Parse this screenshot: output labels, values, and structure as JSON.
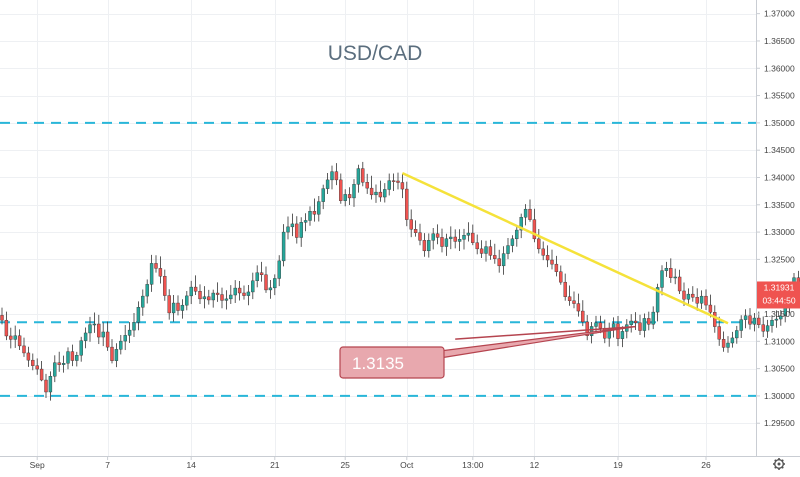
{
  "chart_data": {
    "type": "candlestick",
    "title": "USD/CAD",
    "colors": {
      "up": "#26a69a",
      "down": "#ef5350",
      "wick": "#333333",
      "grid": "#eef0f3",
      "level_line": "#29b6d9",
      "trendline": "#f5e23a",
      "annotation_fill": "#e8a8ae",
      "annotation_stroke": "#b5444f",
      "price_badge": "#ef5350",
      "axis_text": "#444444",
      "title_text": "#5b6e7e"
    },
    "y_axis": {
      "min": 1.289,
      "max": 1.3725,
      "ticks": [
        "1.37000",
        "1.36500",
        "1.36000",
        "1.35500",
        "1.35000",
        "1.34500",
        "1.34000",
        "1.33500",
        "1.33000",
        "1.32500",
        "1.31500",
        "1.31000",
        "1.30500",
        "1.30000",
        "1.29500"
      ]
    },
    "x_axis": {
      "labels": [
        {
          "label": "Sep",
          "index": 8
        },
        {
          "label": "7",
          "index": 24
        },
        {
          "label": "14",
          "index": 43
        },
        {
          "label": "21",
          "index": 62
        },
        {
          "label": "25",
          "index": 78
        },
        {
          "label": "Oct",
          "index": 92
        },
        {
          "label": "13:00",
          "index": 107
        },
        {
          "label": "12",
          "index": 121
        },
        {
          "label": "19",
          "index": 140
        },
        {
          "label": "26",
          "index": 160
        }
      ]
    },
    "price_badge": {
      "price": "1.31931",
      "countdown": "03:44:50",
      "value": 1.31931
    },
    "horizontal_levels": [
      1.35,
      1.3135,
      1.3
    ],
    "trendlines": [
      {
        "from": {
          "index": 91,
          "price": 1.3408
        },
        "to": {
          "index": 165,
          "price": 1.3133
        }
      },
      {
        "from": {
          "index": 103,
          "price": 1.3104
        },
        "to": {
          "index": 144,
          "price": 1.3127
        }
      }
    ],
    "annotation": {
      "label": "1.3135",
      "value": 1.3135
    },
    "candles": [
      [
        1.31476,
        1.31616,
        1.3131,
        1.31387
      ],
      [
        1.31387,
        1.31544,
        1.31022,
        1.31098
      ],
      [
        1.31098,
        1.31249,
        1.3087,
        1.31035
      ],
      [
        1.31035,
        1.31288,
        1.30879,
        1.31102
      ],
      [
        1.31102,
        1.31218,
        1.30842,
        1.30916
      ],
      [
        1.30916,
        1.31068,
        1.30714,
        1.30787
      ],
      [
        1.30787,
        1.30901,
        1.30533,
        1.30655
      ],
      [
        1.30655,
        1.30777,
        1.3047,
        1.30554
      ],
      [
        1.30554,
        1.30687,
        1.30387,
        1.30492
      ],
      [
        1.30492,
        1.3064,
        1.30268,
        1.30291
      ],
      [
        1.30291,
        1.30403,
        1.29963,
        1.30072
      ],
      [
        1.30072,
        1.30449,
        1.29913,
        1.3036
      ],
      [
        1.3036,
        1.30744,
        1.30253,
        1.30609
      ],
      [
        1.30609,
        1.30809,
        1.30442,
        1.30573
      ],
      [
        1.30573,
        1.30737,
        1.30426,
        1.30599
      ],
      [
        1.30599,
        1.30888,
        1.30489,
        1.30812
      ],
      [
        1.30812,
        1.3094,
        1.30546,
        1.30648
      ],
      [
        1.30648,
        1.30807,
        1.3054,
        1.30744
      ],
      [
        1.30744,
        1.31082,
        1.30627,
        1.31012
      ],
      [
        1.31012,
        1.31254,
        1.30874,
        1.31153
      ],
      [
        1.31153,
        1.31448,
        1.30991,
        1.31305
      ],
      [
        1.31305,
        1.31527,
        1.31155,
        1.31317
      ],
      [
        1.31317,
        1.31484,
        1.3095,
        1.31078
      ],
      [
        1.31078,
        1.31347,
        1.30913,
        1.31171
      ],
      [
        1.31171,
        1.31363,
        1.30825,
        1.30894
      ],
      [
        1.30894,
        1.31041,
        1.30596,
        1.30645
      ],
      [
        1.30645,
        1.30964,
        1.30527,
        1.30853
      ],
      [
        1.30853,
        1.31116,
        1.3076,
        1.31004
      ],
      [
        1.31004,
        1.31299,
        1.3084,
        1.31109
      ],
      [
        1.31109,
        1.31352,
        1.30969,
        1.31205
      ],
      [
        1.31205,
        1.31519,
        1.3108,
        1.31348
      ],
      [
        1.31348,
        1.31731,
        1.31202,
        1.31623
      ],
      [
        1.31623,
        1.31949,
        1.31467,
        1.31828
      ],
      [
        1.31828,
        1.32133,
        1.31693,
        1.32043
      ],
      [
        1.32043,
        1.32583,
        1.31906,
        1.32427
      ],
      [
        1.32427,
        1.32575,
        1.32257,
        1.32336
      ],
      [
        1.32336,
        1.32555,
        1.32059,
        1.32192
      ],
      [
        1.32192,
        1.32313,
        1.31742,
        1.31838
      ],
      [
        1.31838,
        1.31954,
        1.31397,
        1.3152
      ],
      [
        1.3152,
        1.31847,
        1.3136,
        1.31701
      ],
      [
        1.31701,
        1.31842,
        1.31474,
        1.31564
      ],
      [
        1.31564,
        1.3177,
        1.31415,
        1.31662
      ],
      [
        1.31662,
        1.31921,
        1.31568,
        1.31832
      ],
      [
        1.31832,
        1.32107,
        1.31682,
        1.31993
      ],
      [
        1.31993,
        1.32207,
        1.31848,
        1.31917
      ],
      [
        1.31917,
        1.32042,
        1.31683,
        1.31777
      ],
      [
        1.31777,
        1.3201,
        1.31604,
        1.31817
      ],
      [
        1.31817,
        1.31942,
        1.31672,
        1.31757
      ],
      [
        1.31757,
        1.31946,
        1.31617,
        1.31884
      ],
      [
        1.31884,
        1.32079,
        1.31723,
        1.31856
      ],
      [
        1.31856,
        1.31983,
        1.31605,
        1.31749
      ],
      [
        1.31749,
        1.31936,
        1.31582,
        1.31777
      ],
      [
        1.31777,
        1.32029,
        1.31684,
        1.31848
      ],
      [
        1.31848,
        1.32121,
        1.31702,
        1.31975
      ],
      [
        1.31975,
        1.32104,
        1.31748,
        1.31885
      ],
      [
        1.31885,
        1.32021,
        1.31763,
        1.31837
      ],
      [
        1.31837,
        1.32031,
        1.3166,
        1.31904
      ],
      [
        1.31904,
        1.32257,
        1.31773,
        1.32108
      ],
      [
        1.32108,
        1.32391,
        1.31989,
        1.32255
      ],
      [
        1.32255,
        1.32455,
        1.32093,
        1.32218
      ],
      [
        1.32218,
        1.32369,
        1.31887,
        1.31941
      ],
      [
        1.31941,
        1.32122,
        1.3178,
        1.31979
      ],
      [
        1.31979,
        1.32226,
        1.31846,
        1.32151
      ],
      [
        1.32151,
        1.32577,
        1.32011,
        1.32473
      ],
      [
        1.32473,
        1.33146,
        1.32373,
        1.33
      ],
      [
        1.33,
        1.33285,
        1.32866,
        1.33096
      ],
      [
        1.33096,
        1.33338,
        1.32926,
        1.3315
      ],
      [
        1.3315,
        1.33291,
        1.3279,
        1.32901
      ],
      [
        1.32901,
        1.33272,
        1.32729,
        1.33179
      ],
      [
        1.33179,
        1.33346,
        1.33016,
        1.33213
      ],
      [
        1.33213,
        1.33472,
        1.33117,
        1.33381
      ],
      [
        1.33381,
        1.33616,
        1.33192,
        1.33326
      ],
      [
        1.33326,
        1.33661,
        1.33194,
        1.33558
      ],
      [
        1.33558,
        1.33868,
        1.33421,
        1.33796
      ],
      [
        1.33796,
        1.34081,
        1.33697,
        1.33956
      ],
      [
        1.33956,
        1.34217,
        1.33783,
        1.34107
      ],
      [
        1.34107,
        1.34264,
        1.33859,
        1.33956
      ],
      [
        1.33956,
        1.34073,
        1.33519,
        1.33575
      ],
      [
        1.33575,
        1.33785,
        1.33473,
        1.3369
      ],
      [
        1.3369,
        1.33822,
        1.33497,
        1.33626
      ],
      [
        1.33626,
        1.33969,
        1.33461,
        1.33875
      ],
      [
        1.33875,
        1.34234,
        1.33723,
        1.34163
      ],
      [
        1.34163,
        1.34285,
        1.33839,
        1.33912
      ],
      [
        1.33912,
        1.34067,
        1.33699,
        1.33805
      ],
      [
        1.33805,
        1.34032,
        1.33598,
        1.33682
      ],
      [
        1.33682,
        1.33872,
        1.33536,
        1.33732
      ],
      [
        1.33732,
        1.33943,
        1.33555,
        1.33642
      ],
      [
        1.33642,
        1.33897,
        1.33542,
        1.33781
      ],
      [
        1.33781,
        1.34072,
        1.33671,
        1.33942
      ],
      [
        1.33942,
        1.34073,
        1.33753,
        1.33936
      ],
      [
        1.33936,
        1.3409,
        1.33782,
        1.33908
      ],
      [
        1.33908,
        1.34066,
        1.33621,
        1.33788
      ],
      [
        1.33788,
        1.33923,
        1.33108,
        1.33229
      ],
      [
        1.33229,
        1.33415,
        1.32907,
        1.33053
      ],
      [
        1.33053,
        1.33215,
        1.32916,
        1.32988
      ],
      [
        1.32988,
        1.33152,
        1.32759,
        1.32849
      ],
      [
        1.32849,
        1.32982,
        1.32549,
        1.32657
      ],
      [
        1.32657,
        1.32976,
        1.32534,
        1.32849
      ],
      [
        1.32849,
        1.33075,
        1.32683,
        1.32969
      ],
      [
        1.32969,
        1.33141,
        1.32778,
        1.32903
      ],
      [
        1.32903,
        1.33063,
        1.32628,
        1.32736
      ],
      [
        1.32736,
        1.32969,
        1.32565,
        1.32878
      ],
      [
        1.32878,
        1.33105,
        1.32688,
        1.3291
      ],
      [
        1.3291,
        1.3305,
        1.32702,
        1.32829
      ],
      [
        1.32829,
        1.33053,
        1.32653,
        1.32868
      ],
      [
        1.32868,
        1.33058,
        1.32682,
        1.32942
      ],
      [
        1.32942,
        1.33181,
        1.32827,
        1.32982
      ],
      [
        1.32982,
        1.33138,
        1.32761,
        1.32806
      ],
      [
        1.32806,
        1.32955,
        1.32593,
        1.32693
      ],
      [
        1.32693,
        1.3285,
        1.32525,
        1.32609
      ],
      [
        1.32609,
        1.32841,
        1.32459,
        1.32734
      ],
      [
        1.32734,
        1.32857,
        1.32493,
        1.32574
      ],
      [
        1.32574,
        1.32786,
        1.3242,
        1.32514
      ],
      [
        1.32514,
        1.32676,
        1.32257,
        1.32382
      ],
      [
        1.32382,
        1.32741,
        1.32219,
        1.32606
      ],
      [
        1.32606,
        1.32893,
        1.32504,
        1.32753
      ],
      [
        1.32753,
        1.32943,
        1.32631,
        1.32877
      ],
      [
        1.32877,
        1.33112,
        1.32733,
        1.33037
      ],
      [
        1.33037,
        1.33338,
        1.3289,
        1.33272
      ],
      [
        1.33272,
        1.33513,
        1.33122,
        1.3342
      ],
      [
        1.3342,
        1.33597,
        1.3319,
        1.33228
      ],
      [
        1.33228,
        1.33427,
        1.32813,
        1.32876
      ],
      [
        1.32876,
        1.33057,
        1.32608,
        1.32693
      ],
      [
        1.32693,
        1.32828,
        1.32486,
        1.32575
      ],
      [
        1.32575,
        1.32757,
        1.32358,
        1.32489
      ],
      [
        1.32489,
        1.32678,
        1.32318,
        1.32413
      ],
      [
        1.32413,
        1.32565,
        1.3219,
        1.32274
      ],
      [
        1.32274,
        1.32388,
        1.32036,
        1.32083
      ],
      [
        1.32083,
        1.3224,
        1.31744,
        1.31817
      ],
      [
        1.31817,
        1.32022,
        1.31652,
        1.31742
      ],
      [
        1.31742,
        1.31912,
        1.31606,
        1.31691
      ],
      [
        1.31691,
        1.31873,
        1.31453,
        1.31554
      ],
      [
        1.31554,
        1.31753,
        1.31279,
        1.31355
      ],
      [
        1.31355,
        1.31481,
        1.3102,
        1.31103
      ],
      [
        1.31103,
        1.31354,
        1.30963,
        1.31272
      ],
      [
        1.31272,
        1.31466,
        1.31142,
        1.31339
      ],
      [
        1.31339,
        1.31469,
        1.31151,
        1.31241
      ],
      [
        1.31241,
        1.31398,
        1.30966,
        1.31057
      ],
      [
        1.31057,
        1.31342,
        1.30901,
        1.31239
      ],
      [
        1.31239,
        1.31439,
        1.3107,
        1.31322
      ],
      [
        1.31322,
        1.31464,
        1.30911,
        1.31049
      ],
      [
        1.31049,
        1.31275,
        1.30894,
        1.31182
      ],
      [
        1.31182,
        1.31406,
        1.31055,
        1.31304
      ],
      [
        1.31304,
        1.31498,
        1.31161,
        1.31372
      ],
      [
        1.31372,
        1.31535,
        1.31207,
        1.31339
      ],
      [
        1.31339,
        1.31486,
        1.31115,
        1.31197
      ],
      [
        1.31197,
        1.31509,
        1.31073,
        1.31419
      ],
      [
        1.31419,
        1.31543,
        1.31202,
        1.31313
      ],
      [
        1.31313,
        1.3164,
        1.31224,
        1.31535
      ],
      [
        1.31535,
        1.32053,
        1.31366,
        1.31987
      ],
      [
        1.31987,
        1.32393,
        1.31844,
        1.32294
      ],
      [
        1.32294,
        1.32454,
        1.32181,
        1.32338
      ],
      [
        1.32338,
        1.32519,
        1.3207,
        1.32164
      ],
      [
        1.32164,
        1.32331,
        1.32046,
        1.32178
      ],
      [
        1.32178,
        1.32311,
        1.31866,
        1.31922
      ],
      [
        1.31922,
        1.32077,
        1.31647,
        1.3177
      ],
      [
        1.3177,
        1.3197,
        1.31687,
        1.31864
      ],
      [
        1.31864,
        1.3201,
        1.31725,
        1.31807
      ],
      [
        1.31807,
        1.31971,
        1.31559,
        1.31697
      ],
      [
        1.31697,
        1.31933,
        1.31595,
        1.31827
      ],
      [
        1.31827,
        1.31951,
        1.31573,
        1.31664
      ],
      [
        1.31664,
        1.31856,
        1.31438,
        1.31532
      ],
      [
        1.31532,
        1.31659,
        1.31157,
        1.3127
      ],
      [
        1.3127,
        1.31451,
        1.30917,
        1.31039
      ],
      [
        1.31039,
        1.31179,
        1.30809,
        1.30888
      ],
      [
        1.30888,
        1.31096,
        1.3079,
        1.30969
      ],
      [
        1.30969,
        1.31173,
        1.30884,
        1.31062
      ],
      [
        1.31062,
        1.31282,
        1.30956,
        1.31198
      ],
      [
        1.31198,
        1.31478,
        1.31061,
        1.31397
      ],
      [
        1.31397,
        1.31587,
        1.31239,
        1.31468
      ],
      [
        1.31468,
        1.31608,
        1.31216,
        1.31312
      ],
      [
        1.31312,
        1.31518,
        1.31183,
        1.31426
      ],
      [
        1.31426,
        1.31545,
        1.31241,
        1.31305
      ],
      [
        1.31305,
        1.31455,
        1.31078,
        1.31184
      ],
      [
        1.31184,
        1.31393,
        1.31062,
        1.31287
      ],
      [
        1.31287,
        1.31475,
        1.3116,
        1.31387
      ],
      [
        1.31387,
        1.31566,
        1.31249,
        1.31408
      ],
      [
        1.31408,
        1.31571,
        1.31285,
        1.31468
      ],
      [
        1.31468,
        1.31708,
        1.31348,
        1.3163
      ],
      [
        1.3163,
        1.31967,
        1.31517,
        1.31909
      ],
      [
        1.31909,
        1.32251,
        1.31822,
        1.32164
      ],
      [
        1.32164,
        1.32291,
        1.31891,
        1.31986
      ],
      [
        1.31986,
        1.32096,
        1.31758,
        1.31867
      ],
      [
        1.31867,
        1.32006,
        1.31562,
        1.31626
      ],
      [
        1.31626,
        1.31992,
        1.31501,
        1.31852
      ],
      [
        1.31852,
        1.32043,
        1.3169,
        1.31931
      ]
    ]
  }
}
